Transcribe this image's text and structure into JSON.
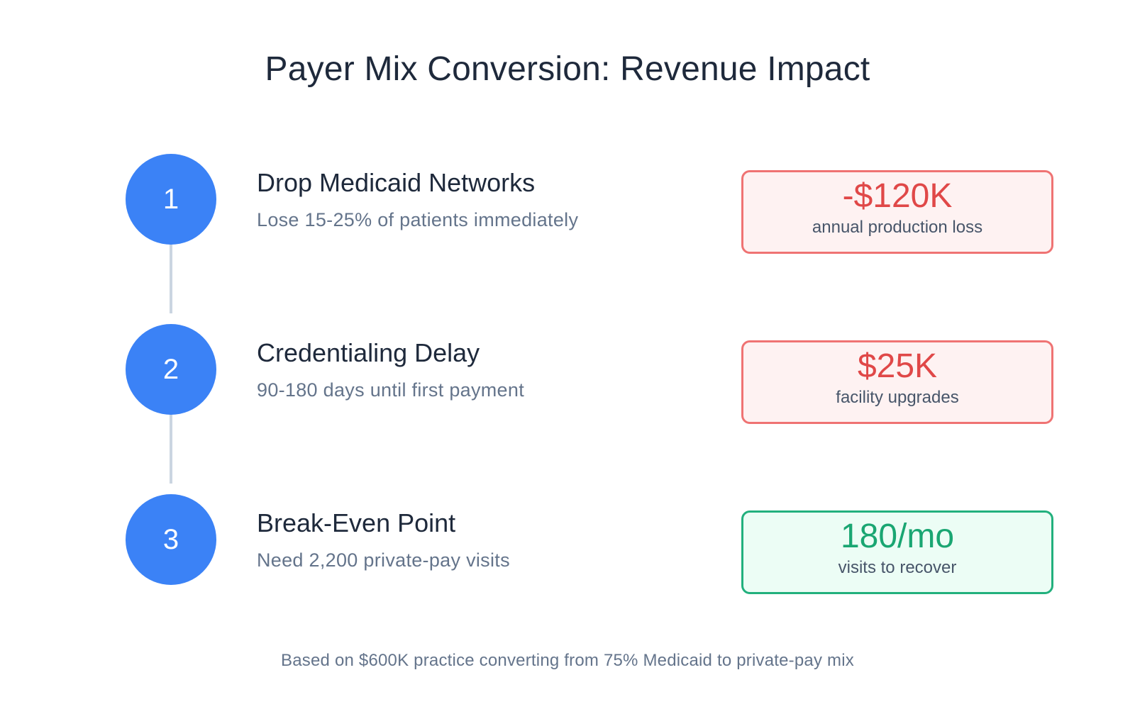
{
  "title": "Payer Mix Conversion: Revenue Impact",
  "steps": [
    {
      "number": "1",
      "title": "Drop Medicaid Networks",
      "subtitle": "Lose 15-25% of patients immediately",
      "metric": {
        "value": "-$120K",
        "label": "annual production loss",
        "tone": "negative"
      }
    },
    {
      "number": "2",
      "title": "Credentialing Delay",
      "subtitle": "90-180 days until first payment",
      "metric": {
        "value": "$25K",
        "label": "facility upgrades",
        "tone": "negative"
      }
    },
    {
      "number": "3",
      "title": "Break-Even Point",
      "subtitle": "Need 2,200 private-pay visits",
      "metric": {
        "value": "180/mo",
        "label": "visits to recover",
        "tone": "positive"
      }
    }
  ],
  "footnote": "Based on $600K practice converting from 75% Medicaid to private-pay mix",
  "colors": {
    "step_circle": "#3b82f6",
    "negative_border": "#ef7373",
    "negative_fill": "#fef2f2",
    "negative_text": "#e04848",
    "positive_border": "#22b07d",
    "positive_fill": "#ecfdf5",
    "positive_text": "#1aa672",
    "connector": "#cbd5e1"
  }
}
